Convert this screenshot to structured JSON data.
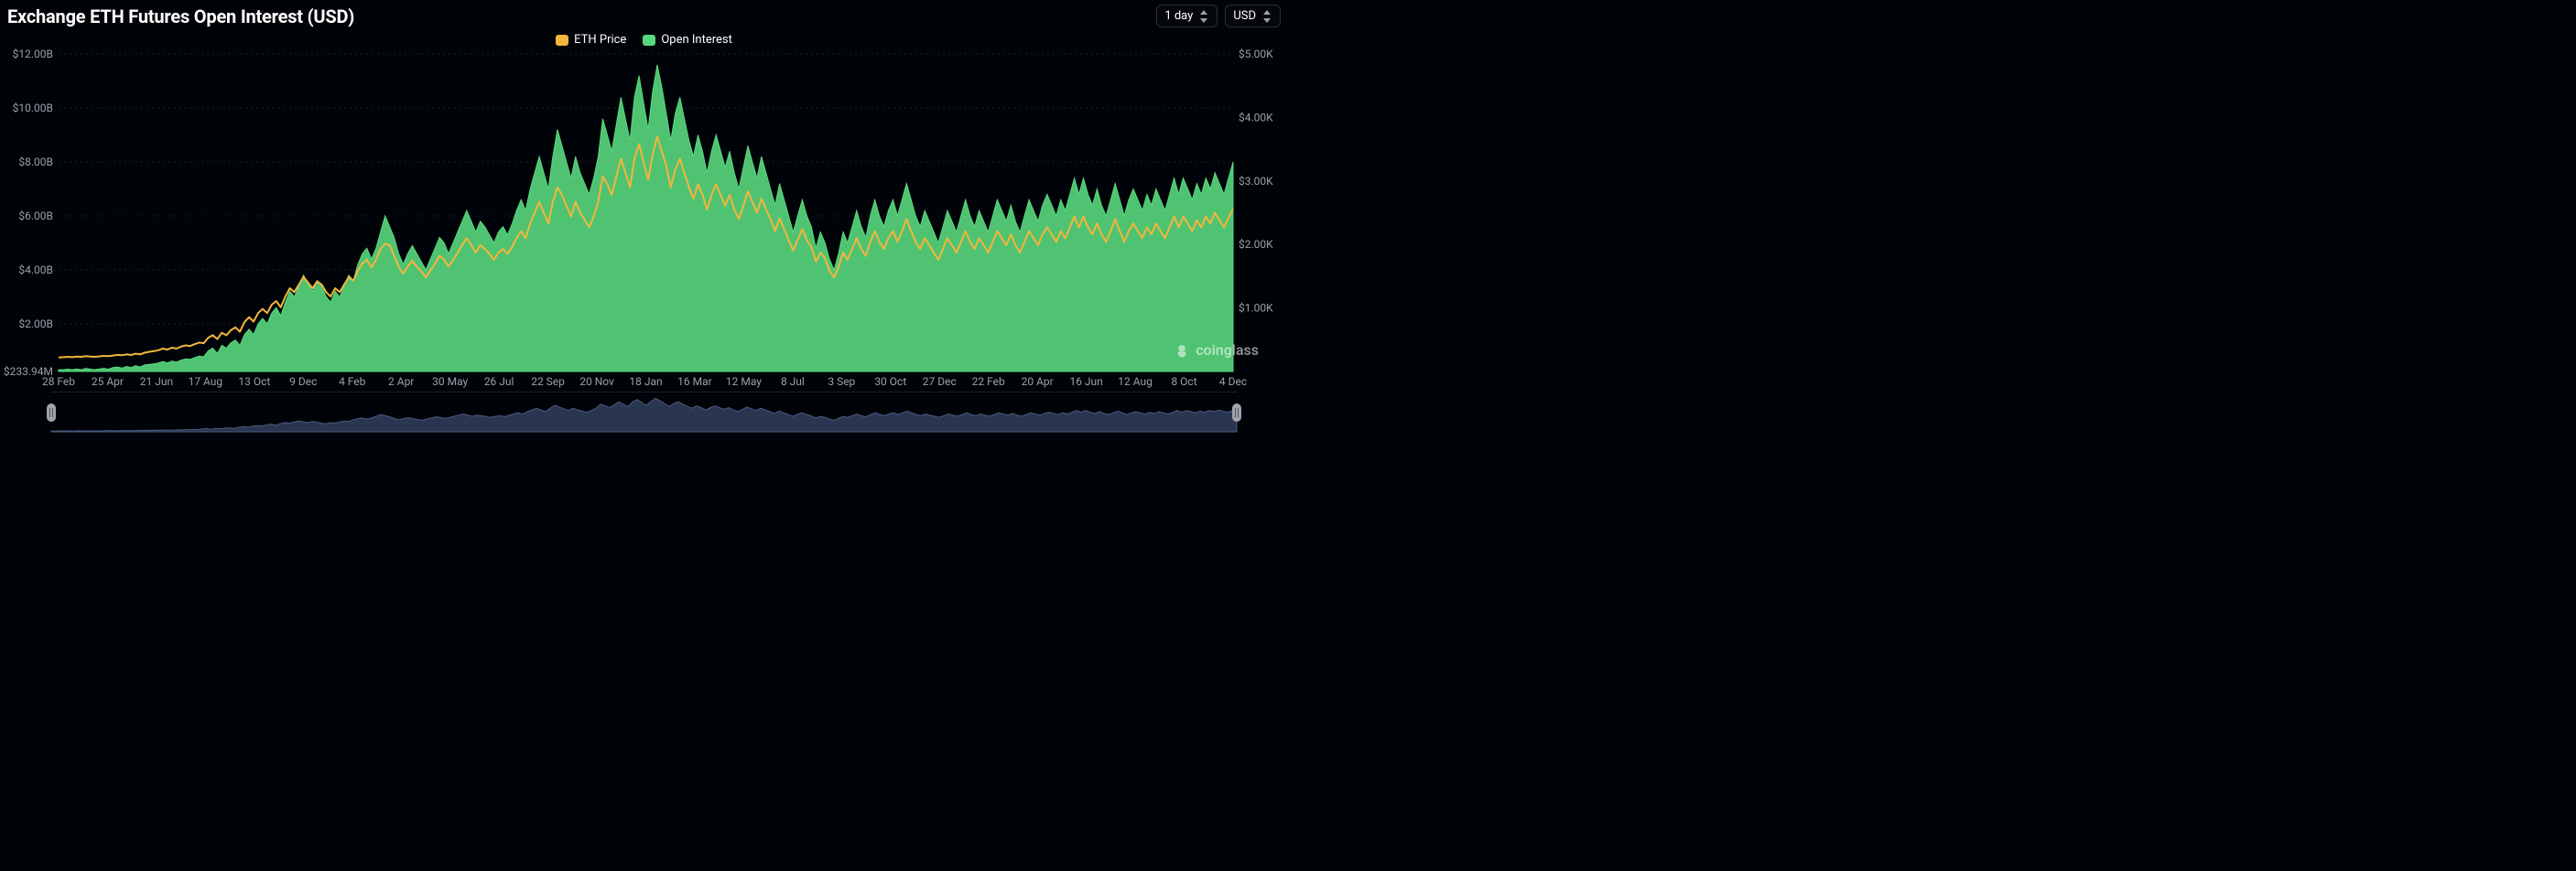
{
  "header": {
    "title": "Exchange ETH Futures Open Interest (USD)",
    "interval_label": "1 day",
    "currency_label": "USD"
  },
  "legend": {
    "series1_label": "ETH Price",
    "series1_color": "#f2b63c",
    "series2_label": "Open Interest",
    "series2_color": "#58d87e"
  },
  "watermark": {
    "text": "coinglass"
  },
  "chart": {
    "type": "line+area-combo",
    "background_color": "#000308",
    "grid_color": "#1a1f28",
    "axis_text_color": "#9aa0aa",
    "axis_fontsize": 12,
    "left_axis": {
      "min": 233940000,
      "max": 12000000000,
      "ticks": [
        {
          "v": 233940000,
          "label": "$233.94M"
        },
        {
          "v": 2000000000,
          "label": "$2.00B"
        },
        {
          "v": 4000000000,
          "label": "$4.00B"
        },
        {
          "v": 6000000000,
          "label": "$6.00B"
        },
        {
          "v": 8000000000,
          "label": "$8.00B"
        },
        {
          "v": 10000000000,
          "label": "$10.00B"
        },
        {
          "v": 12000000000,
          "label": "$12.00B"
        }
      ]
    },
    "right_axis": {
      "min": 0,
      "max": 5000,
      "ticks": [
        {
          "v": 1000,
          "label": "$1.00K"
        },
        {
          "v": 2000,
          "label": "$2.00K"
        },
        {
          "v": 3000,
          "label": "$3.00K"
        },
        {
          "v": 4000,
          "label": "$4.00K"
        },
        {
          "v": 5000,
          "label": "$5.00K"
        }
      ]
    },
    "x_labels": [
      "28 Feb",
      "25 Apr",
      "21 Jun",
      "17 Aug",
      "13 Oct",
      "9 Dec",
      "4 Feb",
      "2 Apr",
      "30 May",
      "26 Jul",
      "22 Sep",
      "20 Nov",
      "18 Jan",
      "16 Mar",
      "12 May",
      "8 Jul",
      "3 Sep",
      "30 Oct",
      "27 Dec",
      "22 Feb",
      "20 Apr",
      "16 Jun",
      "12 Aug",
      "8 Oct",
      "4 Dec"
    ],
    "open_interest": {
      "color": "#58d87e",
      "fill_opacity": 0.9,
      "stroke_width": 1,
      "values": [
        0.3,
        0.3,
        0.32,
        0.3,
        0.33,
        0.3,
        0.35,
        0.32,
        0.3,
        0.33,
        0.35,
        0.32,
        0.38,
        0.4,
        0.36,
        0.42,
        0.38,
        0.45,
        0.4,
        0.48,
        0.5,
        0.52,
        0.55,
        0.6,
        0.55,
        0.62,
        0.58,
        0.65,
        0.7,
        0.68,
        0.75,
        0.8,
        0.78,
        1.0,
        1.1,
        0.9,
        1.2,
        1.1,
        1.3,
        1.4,
        1.2,
        1.6,
        1.8,
        1.6,
        2.0,
        2.2,
        2.0,
        2.4,
        2.6,
        2.3,
        2.8,
        3.2,
        3.0,
        3.4,
        3.8,
        3.5,
        3.2,
        3.6,
        3.4,
        3.0,
        2.8,
        3.2,
        3.0,
        3.4,
        3.8,
        3.6,
        4.2,
        4.6,
        4.8,
        4.4,
        4.8,
        5.4,
        6.0,
        5.6,
        5.2,
        4.6,
        4.2,
        4.6,
        4.9,
        4.6,
        4.3,
        4.0,
        4.4,
        4.8,
        5.2,
        5.0,
        4.6,
        5.0,
        5.4,
        5.8,
        6.2,
        5.8,
        5.4,
        5.8,
        5.6,
        5.3,
        5.0,
        5.4,
        5.6,
        5.3,
        5.7,
        6.2,
        6.6,
        6.2,
        7.0,
        7.6,
        8.2,
        7.6,
        7.0,
        8.2,
        9.2,
        8.6,
        8.0,
        7.4,
        8.2,
        7.6,
        7.2,
        6.8,
        7.4,
        8.2,
        9.6,
        9.0,
        8.4,
        9.4,
        10.4,
        9.6,
        8.8,
        10.4,
        11.2,
        10.2,
        9.2,
        10.6,
        11.6,
        10.8,
        9.8,
        8.8,
        9.8,
        10.4,
        9.6,
        8.8,
        8.2,
        9.0,
        8.4,
        7.6,
        8.4,
        9.0,
        8.4,
        7.8,
        8.4,
        7.6,
        7.0,
        7.8,
        8.6,
        8.0,
        7.4,
        8.2,
        7.6,
        7.0,
        6.4,
        7.2,
        6.6,
        6.0,
        5.4,
        6.0,
        6.6,
        6.0,
        5.6,
        4.8,
        5.4,
        5.0,
        4.4,
        4.0,
        4.6,
        5.4,
        5.0,
        5.6,
        6.2,
        5.6,
        5.2,
        6.0,
        6.6,
        6.0,
        5.6,
        6.2,
        6.6,
        6.0,
        6.6,
        7.2,
        6.6,
        6.0,
        5.6,
        6.2,
        5.8,
        5.4,
        5.0,
        5.6,
        6.2,
        5.8,
        5.4,
        6.0,
        6.6,
        6.0,
        5.6,
        6.2,
        5.8,
        5.4,
        6.0,
        6.6,
        6.2,
        5.8,
        6.4,
        5.8,
        5.4,
        6.0,
        6.6,
        6.2,
        5.8,
        6.4,
        6.8,
        6.4,
        6.0,
        6.6,
        6.2,
        6.8,
        7.4,
        6.8,
        7.4,
        6.8,
        6.4,
        7.0,
        6.4,
        6.0,
        6.6,
        7.2,
        6.6,
        6.0,
        6.6,
        7.0,
        6.6,
        6.2,
        6.8,
        6.4,
        7.0,
        6.6,
        6.2,
        6.8,
        7.4,
        6.8,
        7.4,
        7.0,
        6.6,
        7.2,
        6.8,
        7.4,
        7.0,
        7.6,
        7.2,
        6.8,
        7.4,
        8.0
      ]
    },
    "eth_price": {
      "color": "#f2b63c",
      "stroke_width": 2,
      "values": [
        220,
        225,
        230,
        225,
        235,
        230,
        240,
        235,
        230,
        238,
        245,
        240,
        250,
        260,
        255,
        270,
        260,
        280,
        270,
        295,
        310,
        320,
        335,
        360,
        345,
        375,
        360,
        390,
        410,
        400,
        430,
        455,
        445,
        530,
        570,
        510,
        610,
        570,
        650,
        695,
        625,
        780,
        855,
        785,
        920,
        985,
        920,
        1050,
        1110,
        1010,
        1180,
        1310,
        1250,
        1370,
        1490,
        1400,
        1310,
        1420,
        1370,
        1250,
        1180,
        1310,
        1250,
        1370,
        1490,
        1430,
        1590,
        1700,
        1760,
        1640,
        1760,
        1930,
        2010,
        1990,
        1820,
        1650,
        1540,
        1650,
        1740,
        1650,
        1570,
        1480,
        1590,
        1700,
        1820,
        1760,
        1650,
        1760,
        1870,
        1990,
        2100,
        1990,
        1870,
        1990,
        1930,
        1850,
        1760,
        1870,
        1930,
        1850,
        1960,
        2100,
        2210,
        2100,
        2330,
        2500,
        2670,
        2500,
        2330,
        2670,
        2900,
        2780,
        2610,
        2440,
        2670,
        2500,
        2390,
        2270,
        2440,
        2670,
        3070,
        2950,
        2780,
        3070,
        3350,
        3130,
        2900,
        3350,
        3580,
        3300,
        3020,
        3410,
        3700,
        3470,
        3240,
        2900,
        3180,
        3350,
        3130,
        2900,
        2720,
        2950,
        2780,
        2550,
        2780,
        2950,
        2780,
        2610,
        2780,
        2550,
        2400,
        2610,
        2840,
        2670,
        2500,
        2720,
        2550,
        2400,
        2210,
        2410,
        2240,
        2070,
        1900,
        2070,
        2240,
        2070,
        1960,
        1730,
        1870,
        1790,
        1590,
        1480,
        1650,
        1870,
        1760,
        1930,
        2100,
        1930,
        1820,
        2040,
        2210,
        2040,
        1930,
        2100,
        2210,
        2040,
        2210,
        2400,
        2210,
        2040,
        1930,
        2100,
        1990,
        1870,
        1760,
        1930,
        2100,
        1990,
        1870,
        2040,
        2210,
        2040,
        1930,
        2100,
        1990,
        1870,
        2040,
        2210,
        2100,
        1990,
        2160,
        1990,
        1870,
        2040,
        2210,
        2100,
        1990,
        2160,
        2270,
        2160,
        2040,
        2210,
        2100,
        2270,
        2440,
        2270,
        2440,
        2270,
        2160,
        2330,
        2160,
        2040,
        2210,
        2400,
        2210,
        2040,
        2210,
        2330,
        2210,
        2100,
        2270,
        2160,
        2330,
        2210,
        2100,
        2270,
        2440,
        2270,
        2440,
        2330,
        2210,
        2380,
        2270,
        2440,
        2330,
        2500,
        2380,
        2270,
        2420,
        2560
      ]
    },
    "navigator": {
      "fill_color": "#2a3550",
      "stroke_color": "#4a5a80"
    }
  }
}
